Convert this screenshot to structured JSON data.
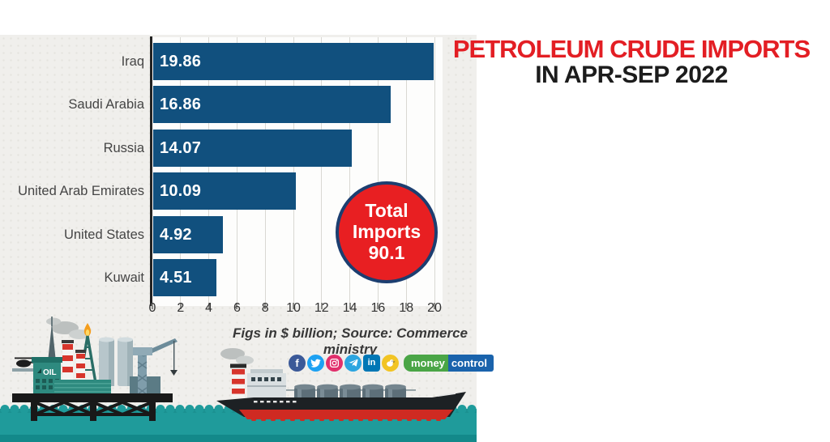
{
  "title": {
    "line1": "PETROLEUM CRUDE IMPORTS",
    "line2": "IN APR-SEP 2022",
    "accent_color": "#e31e24"
  },
  "chart_data": {
    "type": "bar",
    "orientation": "horizontal",
    "title": "Petroleum crude imports in Apr-Sep 2022",
    "categories": [
      "Iraq",
      "Saudi Arabia",
      "Russia",
      "United Arab Emirates",
      "United States",
      "Kuwait"
    ],
    "values": [
      19.86,
      16.86,
      14.07,
      10.09,
      4.92,
      4.51
    ],
    "x_ticks": [
      0,
      2,
      4,
      6,
      8,
      10,
      12,
      14,
      16,
      18,
      20
    ],
    "xlim": [
      0,
      20
    ],
    "xlabel": "",
    "ylabel": "",
    "grid": true,
    "legend": false,
    "bar_color": "#11507e",
    "value_label_color": "#ffffff",
    "units": "$ billion",
    "total_badge": {
      "line1": "Total",
      "line2": "Imports",
      "value": "90.1",
      "fill_color": "#e81f22",
      "border_color": "#1c3e70"
    }
  },
  "footer": {
    "source_note": "Figs in $ billion; Source: Commerce ministry",
    "social_icons": [
      {
        "name": "facebook-icon",
        "color": "#3b5998"
      },
      {
        "name": "twitter-icon",
        "color": "#1da1f2"
      },
      {
        "name": "instagram-icon",
        "color": "#e1306c"
      },
      {
        "name": "telegram-icon",
        "color": "#2ca5e0"
      },
      {
        "name": "linkedin-icon",
        "color": "#0077b5"
      },
      {
        "name": "koo-icon",
        "color": "#f2c423"
      }
    ],
    "brand": {
      "part1": "money",
      "part2": "control",
      "green": "#4aa546",
      "blue": "#1a63ac"
    }
  },
  "illustration": {
    "oil_label": "OIL",
    "water_color": "#1f9b9b"
  }
}
